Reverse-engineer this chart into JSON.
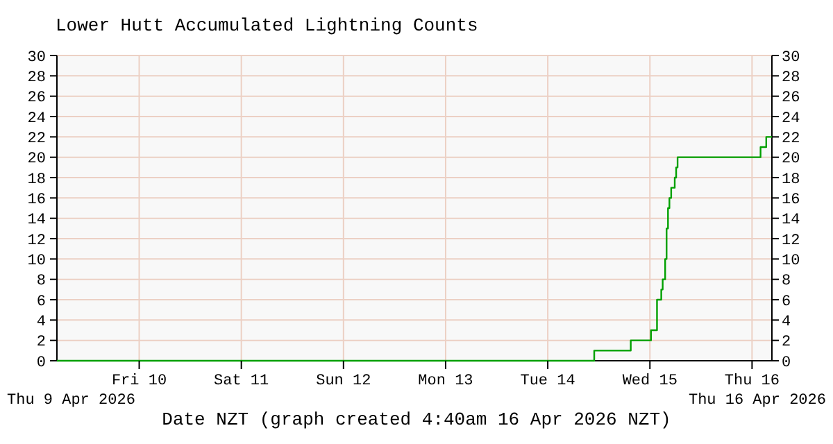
{
  "chart_data": {
    "type": "step",
    "title": "Lower Hutt Accumulated Lightning Counts",
    "xlabel": "Date NZT (graph created 4:40am 16 Apr 2026 NZT)",
    "x": [
      "2026-04-09T04:40",
      "2026-04-14T10:55",
      "2026-04-14T19:30",
      "2026-04-15T00:15",
      "2026-04-15T01:40",
      "2026-04-15T02:40",
      "2026-04-15T03:00",
      "2026-04-15T03:35",
      "2026-04-15T03:55",
      "2026-04-15T04:15",
      "2026-04-15T04:35",
      "2026-04-15T05:00",
      "2026-04-15T05:50",
      "2026-04-15T06:10",
      "2026-04-15T06:30",
      "2026-04-16T02:00",
      "2026-04-16T03:20",
      "2026-04-16T04:40"
    ],
    "series": [
      {
        "color": "#00a000",
        "values": [
          0,
          1,
          2,
          3,
          6,
          7,
          8,
          10,
          13,
          15,
          16,
          17,
          18,
          19,
          20,
          21,
          22,
          22
        ]
      }
    ],
    "xlim": [
      "2026-04-09T04:40",
      "2026-04-16T04:40"
    ],
    "xticks": [
      {
        "value": "2026-04-10",
        "label": "Fri 10"
      },
      {
        "value": "2026-04-11",
        "label": "Sat 11"
      },
      {
        "value": "2026-04-12",
        "label": "Sun 12"
      },
      {
        "value": "2026-04-13",
        "label": "Mon 13"
      },
      {
        "value": "2026-04-14",
        "label": "Tue 14"
      },
      {
        "value": "2026-04-15",
        "label": "Wed 15"
      },
      {
        "value": "2026-04-16",
        "label": "Thu 16"
      }
    ],
    "ylim": [
      0,
      30
    ],
    "yticks": [
      0,
      2,
      4,
      6,
      8,
      10,
      12,
      14,
      16,
      18,
      20,
      22,
      24,
      26,
      28,
      30
    ],
    "y2lim": [
      0,
      30
    ],
    "y2ticks": [
      0,
      2,
      4,
      6,
      8,
      10,
      12,
      14,
      16,
      18,
      20,
      22,
      24,
      26,
      28,
      30
    ],
    "annotations": [
      "Thu 9 Apr 2026",
      "Thu 16 Apr 2026"
    ],
    "grid": true,
    "marker": "none",
    "line_style": "solid"
  }
}
